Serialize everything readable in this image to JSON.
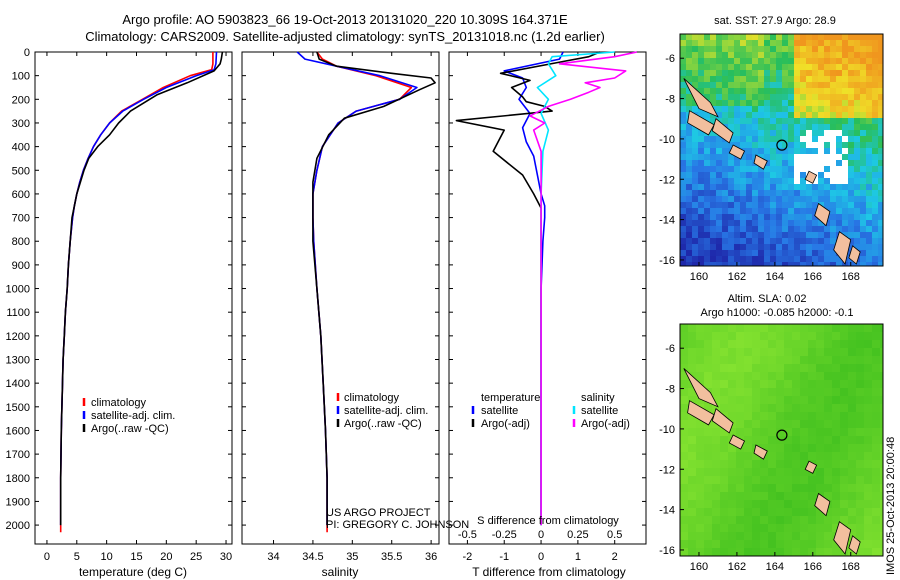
{
  "header": {
    "line1": "Argo profile: AO 5903823_66 19-Oct-2013 20131020_220 10.309S 164.371E",
    "line2": "Climatology: CARS2009. Satellite-adjusted climatology: synTS_20131018.nc (1.2d earlier)"
  },
  "colors": {
    "climatology": "#ff0000",
    "satellite": "#0000ff",
    "argo": "#000000",
    "salinity_satellite": "#00e5ff",
    "salinity_argo": "#ff00ff",
    "land": "#f2bf9e"
  },
  "chart_data": [
    {
      "id": "temperature",
      "type": "line",
      "xlabel": "temperature (deg C)",
      "xlim": [
        -2,
        31
      ],
      "xticks": [
        0,
        5,
        10,
        15,
        20,
        25,
        30
      ],
      "ylim": [
        2080,
        0
      ],
      "yticks": [
        0,
        100,
        200,
        300,
        400,
        500,
        600,
        700,
        800,
        900,
        1000,
        1100,
        1200,
        1300,
        1400,
        1500,
        1600,
        1700,
        1800,
        1900,
        2000
      ],
      "legend": [
        "climatology",
        "satellite-adj. clim.",
        "Argo(..raw -QC)"
      ],
      "series": [
        {
          "name": "climatology",
          "color": "#ff0000",
          "x": [
            27.8,
            27.8,
            27.6,
            24,
            19.5,
            16,
            12.5,
            10.5,
            9,
            7.8,
            6.9,
            6.1,
            5.5,
            5,
            4.6,
            4.3,
            3.9,
            3.6,
            3.4,
            3.1,
            2.9,
            2.7,
            2.6,
            2.5,
            2.4,
            2.3,
            2.3
          ],
          "y": [
            0,
            50,
            75,
            100,
            150,
            200,
            250,
            300,
            350,
            400,
            450,
            500,
            550,
            600,
            650,
            700,
            800,
            900,
            1000,
            1100,
            1200,
            1300,
            1400,
            1500,
            1600,
            1800,
            2030
          ]
        },
        {
          "name": "satellite-adj. clim.",
          "color": "#0000ff",
          "x": [
            28.4,
            28.3,
            28,
            25,
            20,
            16.2,
            12.7,
            10.5,
            9,
            7.8,
            6.9,
            6.1,
            5.5,
            5,
            4.6,
            4.3,
            3.9,
            3.6,
            3.4,
            3.1,
            2.9,
            2.7,
            2.6,
            2.5,
            2.4,
            2.3,
            2.3
          ],
          "y": [
            0,
            50,
            75,
            100,
            150,
            200,
            250,
            300,
            350,
            400,
            450,
            500,
            550,
            600,
            650,
            700,
            800,
            900,
            1000,
            1100,
            1200,
            1300,
            1400,
            1500,
            1600,
            1800,
            2000
          ]
        },
        {
          "name": "Argo(..raw -QC)",
          "color": "#000000",
          "x": [
            29.4,
            29.2,
            29,
            28,
            23.5,
            18.5,
            14,
            12,
            10.5,
            8.5,
            7,
            6.2,
            5.6,
            5,
            4.6,
            4.2,
            3.9,
            3.6,
            3.4,
            3.1,
            2.9,
            2.7,
            2.6,
            2.5,
            2.4,
            2.3,
            2.3
          ],
          "y": [
            0,
            30,
            50,
            80,
            130,
            180,
            250,
            300,
            350,
            400,
            450,
            500,
            550,
            600,
            650,
            700,
            800,
            900,
            1000,
            1100,
            1200,
            1300,
            1400,
            1500,
            1600,
            1800,
            2000
          ]
        }
      ]
    },
    {
      "id": "salinity",
      "type": "line",
      "xlabel": "salinity",
      "xlim": [
        33.6,
        36.1
      ],
      "xticks": [
        34,
        34.5,
        35,
        35.5,
        36
      ],
      "ylim": [
        2080,
        0
      ],
      "legend": [
        "climatology",
        "satellite-adj. clim.",
        "Argo(..raw -QC)"
      ],
      "series": [
        {
          "name": "climatology",
          "color": "#ff0000",
          "x": [
            34.55,
            34.62,
            34.8,
            35.3,
            35.75,
            35.6,
            35.05,
            34.82,
            34.62,
            34.55,
            34.5,
            34.5,
            34.51,
            34.55,
            34.6,
            34.63,
            34.66,
            34.68,
            34.68
          ],
          "y": [
            0,
            30,
            60,
            100,
            150,
            200,
            250,
            300,
            400,
            500,
            600,
            700,
            800,
            1000,
            1200,
            1400,
            1600,
            1800,
            2030
          ]
        },
        {
          "name": "satellite-adj. clim.",
          "color": "#0000ff",
          "x": [
            34.3,
            34.4,
            34.8,
            35.35,
            35.82,
            35.6,
            35.05,
            34.82,
            34.62,
            34.55,
            34.5,
            34.5,
            34.51,
            34.55,
            34.6,
            34.63,
            34.66,
            34.68,
            34.68
          ],
          "y": [
            0,
            30,
            60,
            100,
            150,
            200,
            250,
            300,
            400,
            500,
            600,
            700,
            800,
            1000,
            1200,
            1400,
            1600,
            1800,
            2000
          ]
        },
        {
          "name": "Argo(..raw -QC)",
          "color": "#000000",
          "x": [
            34.55,
            34.58,
            34.8,
            35.5,
            36,
            36.05,
            35.85,
            35.4,
            34.9,
            34.7,
            34.55,
            34.5,
            34.5,
            34.5,
            34.55,
            34.6,
            34.63,
            34.66,
            34.68,
            34.68
          ],
          "y": [
            0,
            30,
            60,
            90,
            110,
            130,
            160,
            230,
            280,
            350,
            450,
            550,
            650,
            800,
            1000,
            1200,
            1400,
            1600,
            1800,
            2000
          ]
        }
      ]
    },
    {
      "id": "difference",
      "type": "line",
      "xlabel": "T difference from climatology",
      "top_axis_label": "S difference from climatology",
      "xlim": [
        -2.5,
        2.85
      ],
      "xticks": [
        -2,
        -1,
        0,
        1,
        2
      ],
      "top_ticks": [
        {
          "label": "-0.5",
          "t": -2
        },
        {
          "label": "-0.25",
          "t": -1
        },
        {
          "label": "0",
          "t": 0
        },
        {
          "label": "0.25",
          "t": 1
        },
        {
          "label": "0.5",
          "t": 2
        }
      ],
      "ylim": [
        2080,
        0
      ],
      "legend_title_left": "temperature",
      "legend_title_right": "salinity",
      "legend_left": [
        "satellite",
        "Argo(-adj)"
      ],
      "legend_right": [
        "satellite",
        "Argo(-adj)"
      ],
      "series": [
        {
          "name": "temperature satellite",
          "color": "#0000ff",
          "x": [
            0.6,
            0.5,
            -1.0,
            -0.5,
            -0.4,
            -0.6,
            -0.3,
            -0.5,
            -0.4,
            -0.2,
            -0.1,
            0,
            0.1,
            0.1,
            0.05,
            0,
            0,
            0,
            0
          ],
          "y": [
            0,
            30,
            80,
            110,
            150,
            200,
            260,
            320,
            380,
            440,
            520,
            600,
            650,
            700,
            800,
            1000,
            1300,
            1700,
            2000
          ]
        },
        {
          "name": "temperature Argo(-adj)",
          "color": "#000000",
          "x": [
            1.6,
            1.3,
            0.6,
            -1.1,
            -0.3,
            -0.8,
            -0.5,
            -0.4,
            0.1,
            0.3,
            -2.3,
            -1.0,
            -1.3,
            -0.5,
            -0.2,
            0.0,
            0.0,
            0.0,
            0.0
          ],
          "y": [
            0,
            20,
            40,
            90,
            120,
            150,
            190,
            210,
            230,
            250,
            290,
            330,
            420,
            520,
            600,
            660,
            800,
            1200,
            2000
          ]
        },
        {
          "name": "salinity satellite",
          "color": "#00e5ff",
          "x": [
            2.0,
            0.3,
            0.2,
            0.4,
            -0.1,
            0.2,
            0.0,
            0.2,
            0.05,
            0.0,
            0.0,
            0.0
          ],
          "y": [
            0,
            20,
            50,
            100,
            150,
            200,
            260,
            330,
            420,
            600,
            1200,
            2000
          ]
        },
        {
          "name": "salinity Argo(-adj)",
          "color": "#ff00ff",
          "x": [
            2.6,
            2.0,
            0.5,
            2.3,
            2.0,
            1.2,
            1.6,
            1.3,
            0.8,
            0.2,
            -0.3,
            0.1,
            -0.2,
            0.0,
            0.0,
            0.0
          ],
          "y": [
            0,
            20,
            50,
            80,
            110,
            130,
            150,
            170,
            200,
            230,
            270,
            300,
            330,
            420,
            600,
            2000
          ]
        }
      ]
    },
    {
      "id": "sst-map",
      "type": "heatmap",
      "title": "sat. SST: 27.9 Argo: 28.9",
      "xticks": [
        160,
        162,
        164,
        166,
        168
      ],
      "yticks": [
        -6,
        -8,
        -10,
        -12,
        -14,
        -16
      ],
      "xlim": [
        159,
        169.7
      ],
      "ylim": [
        -16.3,
        -4.8
      ],
      "argo_position": {
        "lon": 164.371,
        "lat": -10.309
      }
    },
    {
      "id": "sla-map",
      "type": "heatmap",
      "title": "Altim. SLA: 0.02",
      "subtitle": "Argo h1000: -0.085 h2000: -0.1",
      "xticks": [
        160,
        162,
        164,
        166,
        168
      ],
      "yticks": [
        -6,
        -8,
        -10,
        -12,
        -14,
        -16
      ],
      "xlim": [
        159,
        169.7
      ],
      "ylim": [
        -16.3,
        -4.8
      ],
      "argo_position": {
        "lon": 164.371,
        "lat": -10.309
      }
    }
  ],
  "credit": {
    "line1": "US ARGO PROJECT",
    "line2": "PI: GREGORY C. JOHNSON"
  },
  "imos_stamp": "IMOS 25-Oct-2013 20:00:48"
}
